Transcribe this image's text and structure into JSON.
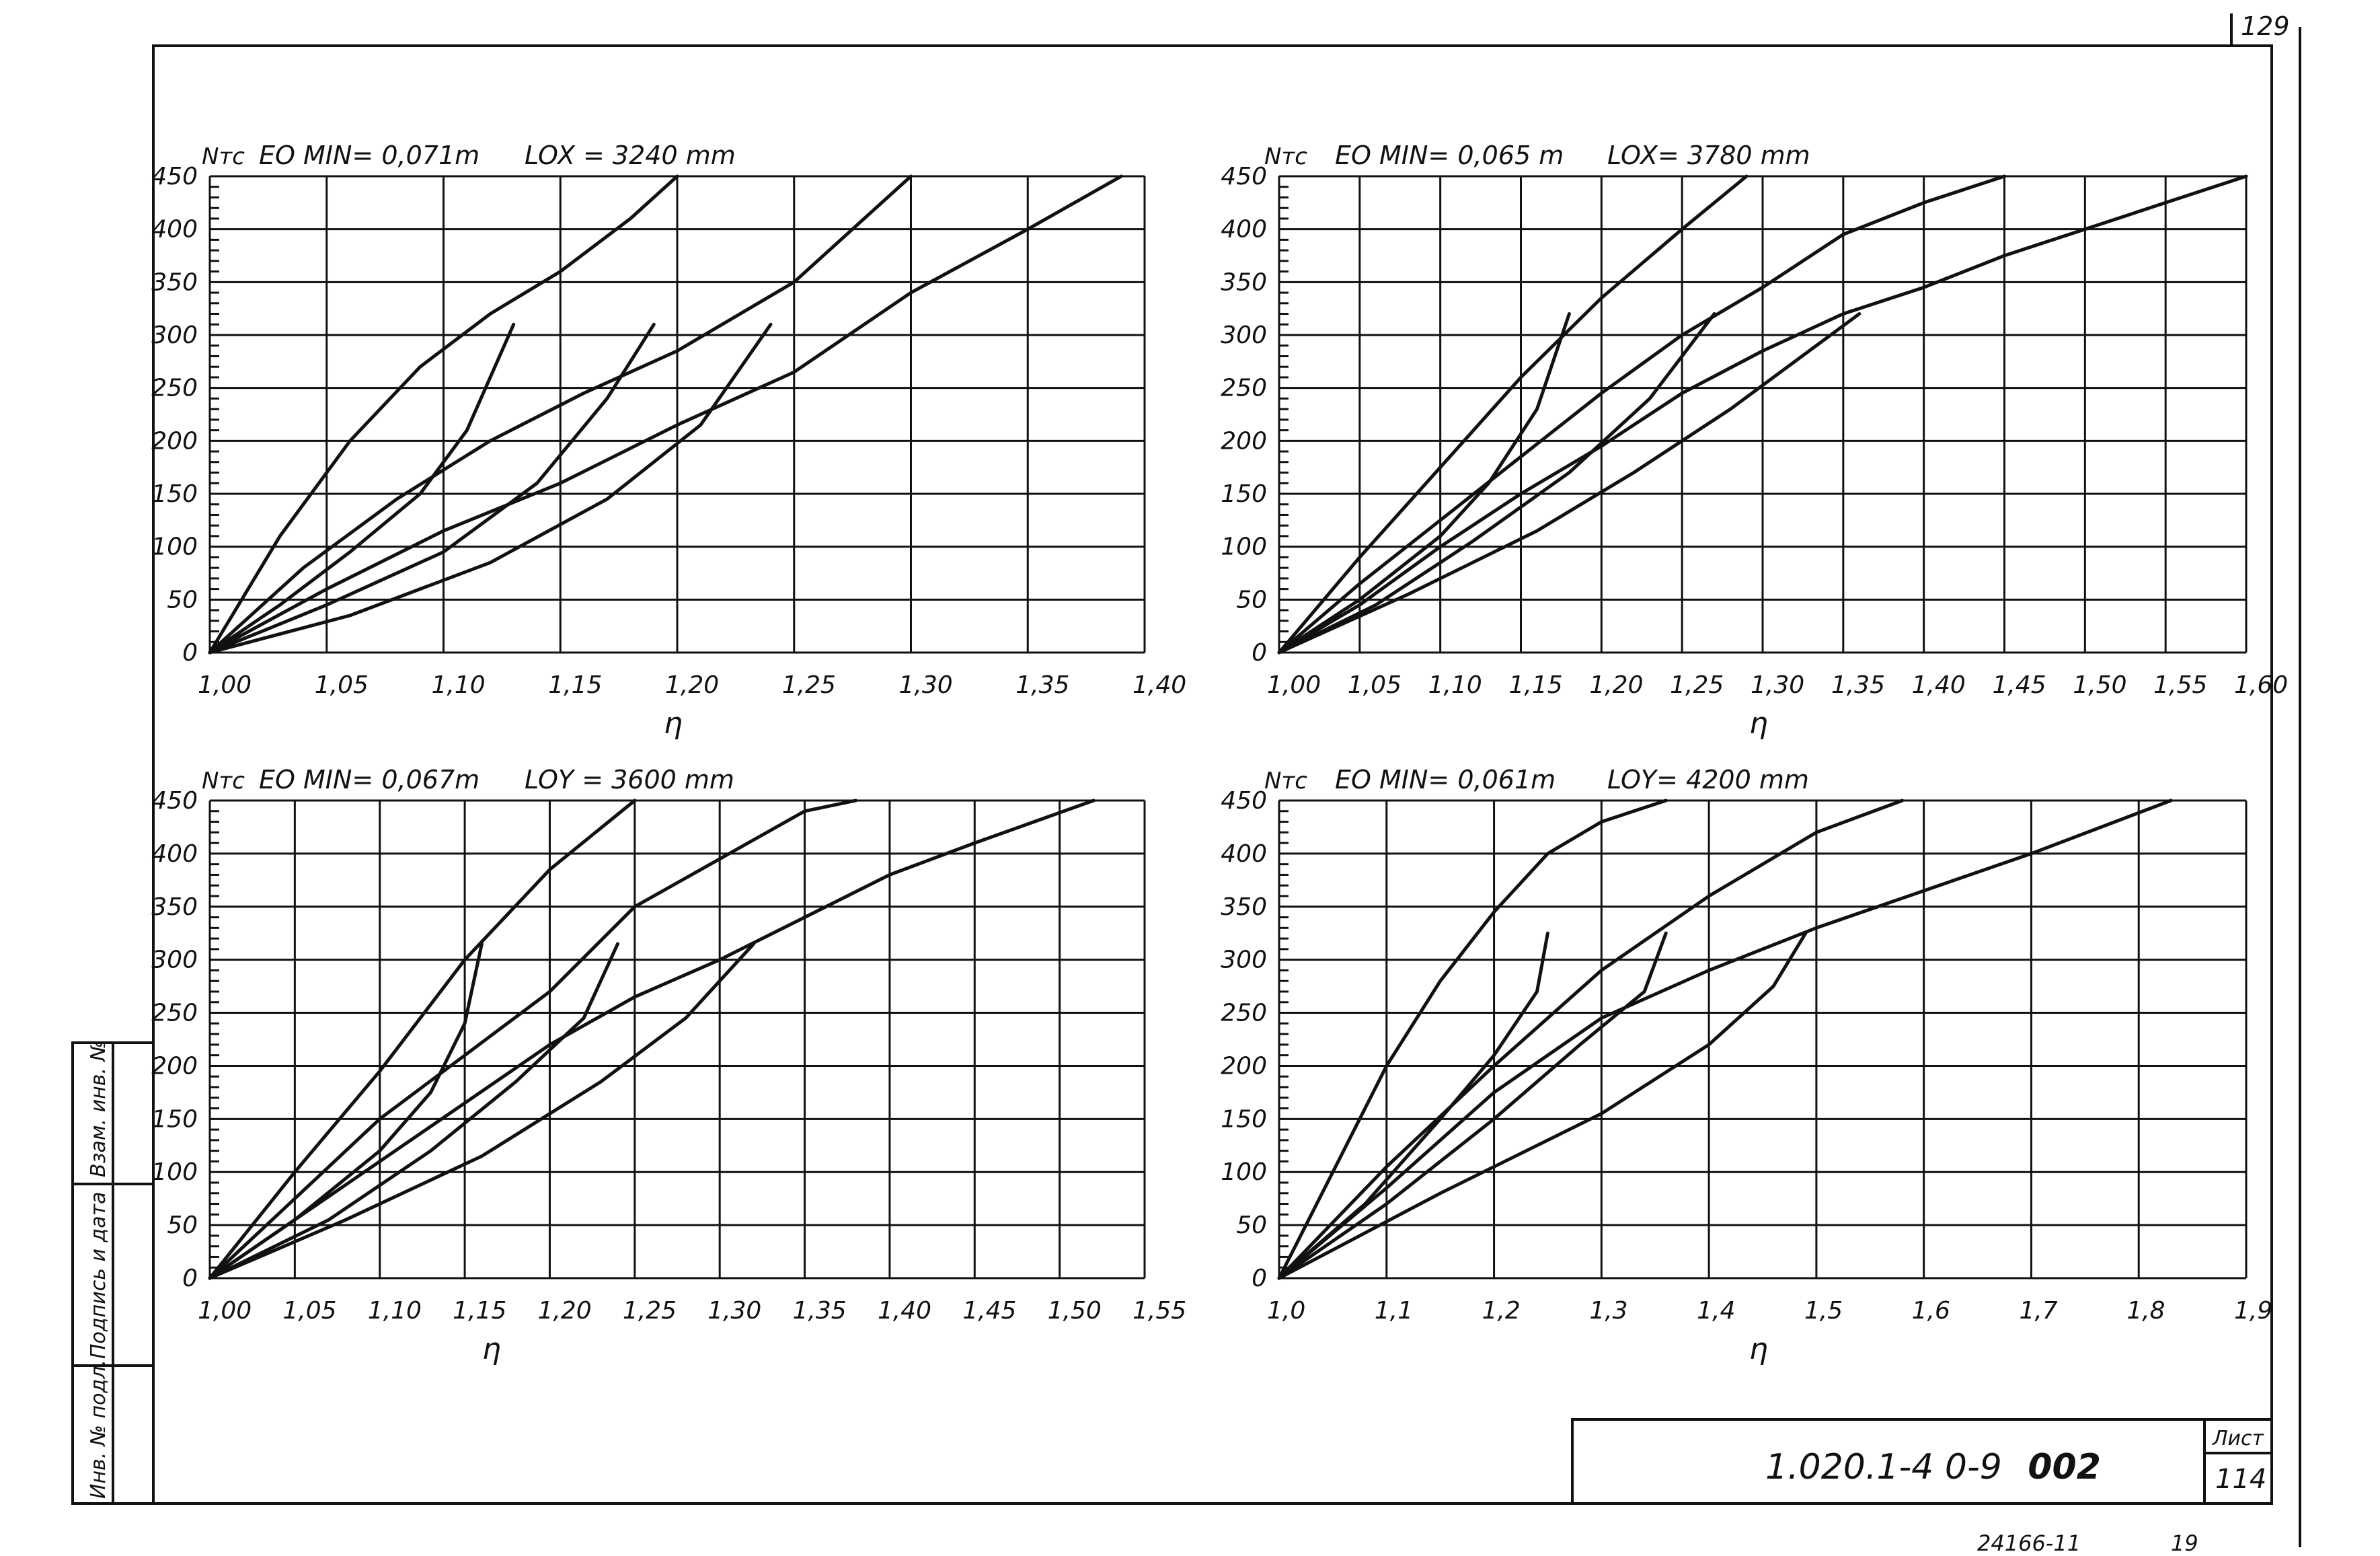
{
  "sheet": {
    "page_number": "129",
    "doc_code": "1.020.1-4  0-9",
    "doc_code_suffix": "002",
    "sheet_label": "Лист",
    "sheet_no": "114",
    "bottom_number": "24166-11",
    "bottom_number_2": "19",
    "side_stamp": [
      "Инв. № подл.",
      "Подпись и дата",
      "Взам. инв. №"
    ]
  },
  "chart_data": [
    {
      "type": "line",
      "ylabel": "Nтс",
      "emin_label": "EO MIN= 0,071m",
      "length_label": "LOX = 3240 mm",
      "xlabel": "η",
      "xlim": [
        1.0,
        1.4
      ],
      "ylim": [
        0,
        450
      ],
      "xticks": [
        1.0,
        1.05,
        1.1,
        1.15,
        1.2,
        1.25,
        1.3,
        1.35,
        1.4
      ],
      "xtick_labels": [
        "1,00",
        "1,05",
        "1,10",
        "1,15",
        "1,20",
        "1,25",
        "1,30",
        "1,35",
        "1,40"
      ],
      "yticks": [
        0,
        50,
        100,
        150,
        200,
        250,
        300,
        350,
        400,
        450
      ],
      "ytick_labels": [
        "0",
        "50",
        "100",
        "150",
        "200",
        "250",
        "300",
        "350",
        "400",
        "450"
      ],
      "grid": true,
      "series": [
        {
          "x": [
            1.0,
            1.03,
            1.06,
            1.09,
            1.12,
            1.15,
            1.18,
            1.2
          ],
          "y": [
            0,
            110,
            200,
            270,
            320,
            360,
            410,
            450
          ]
        },
        {
          "x": [
            1.0,
            1.04,
            1.08,
            1.12,
            1.16,
            1.2,
            1.25,
            1.3
          ],
          "y": [
            0,
            80,
            145,
            200,
            245,
            285,
            350,
            450
          ]
        },
        {
          "x": [
            1.0,
            1.05,
            1.1,
            1.15,
            1.2,
            1.25,
            1.3,
            1.35,
            1.39
          ],
          "y": [
            0,
            60,
            115,
            160,
            215,
            265,
            340,
            400,
            450
          ]
        },
        {
          "x": [
            1.0,
            1.03,
            1.06,
            1.09,
            1.11,
            1.12,
            1.13
          ],
          "y": [
            0,
            45,
            95,
            150,
            210,
            260,
            310
          ]
        },
        {
          "x": [
            1.0,
            1.05,
            1.1,
            1.14,
            1.17,
            1.19
          ],
          "y": [
            0,
            45,
            95,
            160,
            240,
            310
          ]
        },
        {
          "x": [
            1.0,
            1.06,
            1.12,
            1.17,
            1.21,
            1.24
          ],
          "y": [
            0,
            35,
            85,
            145,
            215,
            310
          ]
        }
      ],
      "envelope_x": [
        1.13,
        1.19,
        1.24
      ],
      "envelope_y": [
        310,
        310,
        310
      ]
    },
    {
      "type": "line",
      "ylabel": "Nтс",
      "emin_label": "EO MIN= 0,065 m",
      "length_label": "LOX= 3780 mm",
      "xlabel": "η",
      "xlim": [
        1.0,
        1.6
      ],
      "ylim": [
        0,
        450
      ],
      "xticks": [
        1.0,
        1.05,
        1.1,
        1.15,
        1.2,
        1.25,
        1.3,
        1.35,
        1.4,
        1.45,
        1.5,
        1.55,
        1.6
      ],
      "xtick_labels": [
        "1,00",
        "1,05",
        "1,10",
        "1,15",
        "1,20",
        "1,25",
        "1,30",
        "1,35",
        "1,40",
        "1,45",
        "1,50",
        "1,55",
        "1,60"
      ],
      "yticks": [
        0,
        50,
        100,
        150,
        200,
        250,
        300,
        350,
        400,
        450
      ],
      "ytick_labels": [
        "0",
        "50",
        "100",
        "150",
        "200",
        "250",
        "300",
        "350",
        "400",
        "450"
      ],
      "grid": true,
      "series": [
        {
          "x": [
            1.0,
            1.05,
            1.1,
            1.15,
            1.2,
            1.25,
            1.29
          ],
          "y": [
            0,
            90,
            175,
            260,
            335,
            400,
            450
          ]
        },
        {
          "x": [
            1.0,
            1.05,
            1.1,
            1.15,
            1.2,
            1.25,
            1.3,
            1.35,
            1.4,
            1.45
          ],
          "y": [
            0,
            65,
            125,
            185,
            245,
            300,
            345,
            395,
            425,
            450
          ]
        },
        {
          "x": [
            1.0,
            1.05,
            1.1,
            1.15,
            1.2,
            1.25,
            1.3,
            1.35,
            1.4,
            1.45,
            1.5,
            1.55,
            1.6
          ],
          "y": [
            0,
            45,
            100,
            150,
            195,
            245,
            285,
            320,
            345,
            375,
            400,
            425,
            450
          ]
        },
        {
          "x": [
            1.0,
            1.05,
            1.1,
            1.13,
            1.16,
            1.18
          ],
          "y": [
            0,
            50,
            110,
            160,
            230,
            320
          ]
        },
        {
          "x": [
            1.0,
            1.06,
            1.12,
            1.18,
            1.23,
            1.27
          ],
          "y": [
            0,
            45,
            105,
            170,
            240,
            320
          ]
        },
        {
          "x": [
            1.0,
            1.08,
            1.16,
            1.22,
            1.28,
            1.36
          ],
          "y": [
            0,
            55,
            115,
            170,
            230,
            320
          ]
        }
      ],
      "envelope_x": [
        1.18,
        1.27,
        1.36
      ],
      "envelope_y": [
        320,
        320,
        320
      ]
    },
    {
      "type": "line",
      "ylabel": "Nтс",
      "emin_label": "EO MIN= 0,067m",
      "length_label": "LOY = 3600 mm",
      "xlabel": "η",
      "xlim": [
        1.0,
        1.55
      ],
      "ylim": [
        0,
        450
      ],
      "xticks": [
        1.0,
        1.05,
        1.1,
        1.15,
        1.2,
        1.25,
        1.3,
        1.35,
        1.4,
        1.45,
        1.5,
        1.55
      ],
      "xtick_labels": [
        "1,00",
        "1,05",
        "1,10",
        "1,15",
        "1,20",
        "1,25",
        "1,30",
        "1,35",
        "1,40",
        "1,45",
        "1,50",
        "1,55"
      ],
      "yticks": [
        0,
        50,
        100,
        150,
        200,
        250,
        300,
        350,
        400,
        450
      ],
      "ytick_labels": [
        "0",
        "50",
        "100",
        "150",
        "200",
        "250",
        "300",
        "350",
        "400",
        "450"
      ],
      "grid": true,
      "series": [
        {
          "x": [
            1.0,
            1.05,
            1.1,
            1.15,
            1.2,
            1.25
          ],
          "y": [
            0,
            100,
            195,
            300,
            385,
            450
          ]
        },
        {
          "x": [
            1.0,
            1.05,
            1.1,
            1.15,
            1.2,
            1.25,
            1.3,
            1.35,
            1.38
          ],
          "y": [
            0,
            75,
            150,
            210,
            270,
            350,
            395,
            440,
            450
          ]
        },
        {
          "x": [
            1.0,
            1.05,
            1.1,
            1.15,
            1.2,
            1.25,
            1.3,
            1.35,
            1.4,
            1.45,
            1.52
          ],
          "y": [
            0,
            55,
            110,
            165,
            220,
            265,
            300,
            340,
            380,
            410,
            450
          ]
        },
        {
          "x": [
            1.0,
            1.05,
            1.1,
            1.13,
            1.15,
            1.16
          ],
          "y": [
            0,
            55,
            120,
            175,
            240,
            315
          ]
        },
        {
          "x": [
            1.0,
            1.07,
            1.13,
            1.18,
            1.22,
            1.24
          ],
          "y": [
            0,
            55,
            120,
            185,
            245,
            315
          ]
        },
        {
          "x": [
            1.0,
            1.08,
            1.16,
            1.23,
            1.28,
            1.32
          ],
          "y": [
            0,
            55,
            115,
            185,
            245,
            315
          ]
        }
      ],
      "envelope_x": [
        1.16,
        1.24,
        1.32
      ],
      "envelope_y": [
        315,
        315,
        315
      ]
    },
    {
      "type": "line",
      "ylabel": "Nтс",
      "emin_label": "EO MIN= 0,061m",
      "length_label": "LOY= 4200 mm",
      "xlabel": "η",
      "xlim": [
        1.0,
        1.9
      ],
      "ylim": [
        0,
        450
      ],
      "xticks": [
        1.0,
        1.1,
        1.2,
        1.3,
        1.4,
        1.5,
        1.6,
        1.7,
        1.8,
        1.9
      ],
      "xtick_labels": [
        "1,0",
        "1,1",
        "1,2",
        "1,3",
        "1,4",
        "1,5",
        "1,6",
        "1,7",
        "1,8",
        "1,9"
      ],
      "yticks": [
        0,
        50,
        100,
        150,
        200,
        250,
        300,
        350,
        400,
        450
      ],
      "ytick_labels": [
        "0",
        "50",
        "100",
        "150",
        "200",
        "250",
        "300",
        "350",
        "400",
        "450"
      ],
      "grid": true,
      "series": [
        {
          "x": [
            1.0,
            1.05,
            1.1,
            1.15,
            1.2,
            1.25,
            1.3,
            1.36
          ],
          "y": [
            0,
            100,
            200,
            280,
            345,
            400,
            430,
            450
          ]
        },
        {
          "x": [
            1.0,
            1.1,
            1.2,
            1.3,
            1.4,
            1.5,
            1.58
          ],
          "y": [
            0,
            105,
            200,
            290,
            360,
            420,
            450
          ]
        },
        {
          "x": [
            1.0,
            1.1,
            1.2,
            1.3,
            1.4,
            1.5,
            1.6,
            1.7,
            1.83
          ],
          "y": [
            0,
            85,
            175,
            245,
            290,
            330,
            365,
            400,
            450
          ]
        },
        {
          "x": [
            1.0,
            1.08,
            1.15,
            1.2,
            1.24,
            1.25
          ],
          "y": [
            0,
            70,
            150,
            210,
            270,
            325
          ]
        },
        {
          "x": [
            1.0,
            1.1,
            1.2,
            1.28,
            1.34,
            1.36
          ],
          "y": [
            0,
            70,
            150,
            220,
            270,
            325
          ]
        },
        {
          "x": [
            1.0,
            1.15,
            1.3,
            1.4,
            1.46,
            1.49
          ],
          "y": [
            0,
            80,
            155,
            220,
            275,
            325
          ]
        }
      ],
      "envelope_x": [
        1.25,
        1.36,
        1.49
      ],
      "envelope_y": [
        325,
        325,
        325
      ]
    }
  ]
}
